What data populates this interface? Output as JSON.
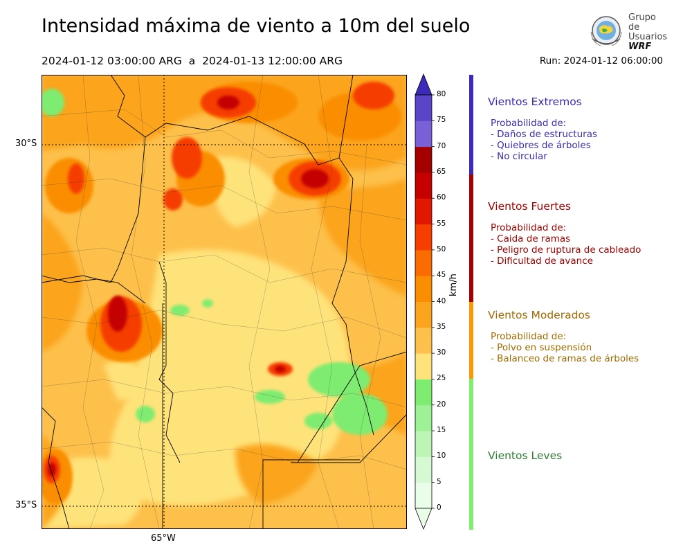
{
  "header": {
    "title": "Intensidad máxima de viento a 10m del suelo",
    "period": "2024-01-12 03:00:00 ARG  a  2024-01-13 12:00:00 ARG",
    "run": "Run: 2024-01-12 06:00:00"
  },
  "logo": {
    "line1": "Grupo de",
    "line2": "Usuarios",
    "line3": "WRF"
  },
  "map": {
    "lat_labels": [
      "30°S",
      "35°S"
    ],
    "lon_labels": [
      "65°W"
    ],
    "field": "wind speed (km/h)"
  },
  "colorbar": {
    "unit": "km/h",
    "ticks": [
      "0",
      "5",
      "10",
      "15",
      "20",
      "25",
      "30",
      "35",
      "40",
      "45",
      "50",
      "55",
      "60",
      "65",
      "70",
      "75",
      "80"
    ],
    "colors": [
      "#eafde8",
      "#d6f9d3",
      "#bdf5b6",
      "#9ef195",
      "#7eec70",
      "#fee37a",
      "#fdc04a",
      "#fba41e",
      "#fa8e00",
      "#fa6b00",
      "#f53e00",
      "#e01800",
      "#c40000",
      "#a40000",
      "#7a60d6",
      "#5a45c8",
      "#3c2ab8"
    ]
  },
  "categories": [
    {
      "title": "Vientos Extremos",
      "color": "#3c2ab0",
      "lines": [
        "Probabilidad de:",
        "- Daños de estructuras",
        "- Quiebres de árboles",
        "- No circular"
      ]
    },
    {
      "title": "Vientos Fuertes",
      "color": "#a30000",
      "lines": [
        "Probabilidad de:",
        "- Caida de ramas",
        "- Peligro de ruptura de cableado",
        "- Dificultad de avance"
      ]
    },
    {
      "title": "Vientos Moderados",
      "color": "#a06a00",
      "lines": [
        "Probabilidad de:",
        "- Polvo en suspensión",
        "- Balanceo de ramas de árboles"
      ]
    },
    {
      "title": "Vientos Leves",
      "color": "#2e7d32",
      "lines": []
    }
  ],
  "side_bar_colors": [
    "#3c2ab8",
    "#a30000",
    "#fa9a00",
    "#7ef06e"
  ]
}
